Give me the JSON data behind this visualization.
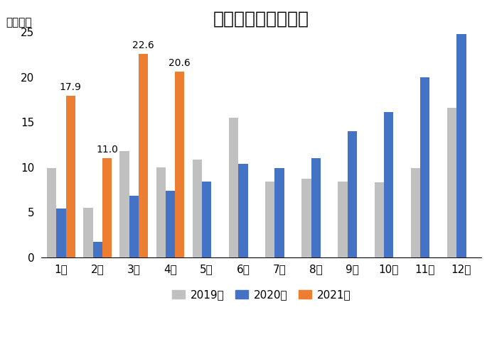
{
  "title": "新能源汽车月度销量",
  "ylabel": "（万辆）",
  "months": [
    "1月",
    "2月",
    "3月",
    "4月",
    "5月",
    "6月",
    "7月",
    "8月",
    "9月",
    "10月",
    "11月",
    "12月"
  ],
  "series": {
    "2019年": [
      9.9,
      5.5,
      11.8,
      10.0,
      10.8,
      15.5,
      8.4,
      8.7,
      8.4,
      8.3,
      9.9,
      16.6
    ],
    "2020年": [
      5.4,
      1.7,
      6.8,
      7.4,
      8.4,
      10.4,
      9.9,
      11.0,
      14.0,
      16.1,
      20.0,
      24.8
    ],
    "2021年": [
      17.9,
      11.0,
      22.6,
      20.6,
      0,
      0,
      0,
      0,
      0,
      0,
      0,
      0
    ]
  },
  "colors": {
    "2019年": "#c0c0c0",
    "2020年": "#4472c4",
    "2021年": "#ed7d31"
  },
  "annotations": [
    {
      "month_idx": 0,
      "value": 17.9
    },
    {
      "month_idx": 1,
      "value": 11.0
    },
    {
      "month_idx": 2,
      "value": 22.6
    },
    {
      "month_idx": 3,
      "value": 20.6
    }
  ],
  "ylim": [
    0,
    25
  ],
  "yticks": [
    0,
    5,
    10,
    15,
    20,
    25
  ],
  "legend_labels": [
    "2019年",
    "2020年",
    "2021年"
  ],
  "bar_width": 0.26,
  "title_fontsize": 18,
  "label_fontsize": 11,
  "tick_fontsize": 11,
  "annotation_fontsize": 10
}
